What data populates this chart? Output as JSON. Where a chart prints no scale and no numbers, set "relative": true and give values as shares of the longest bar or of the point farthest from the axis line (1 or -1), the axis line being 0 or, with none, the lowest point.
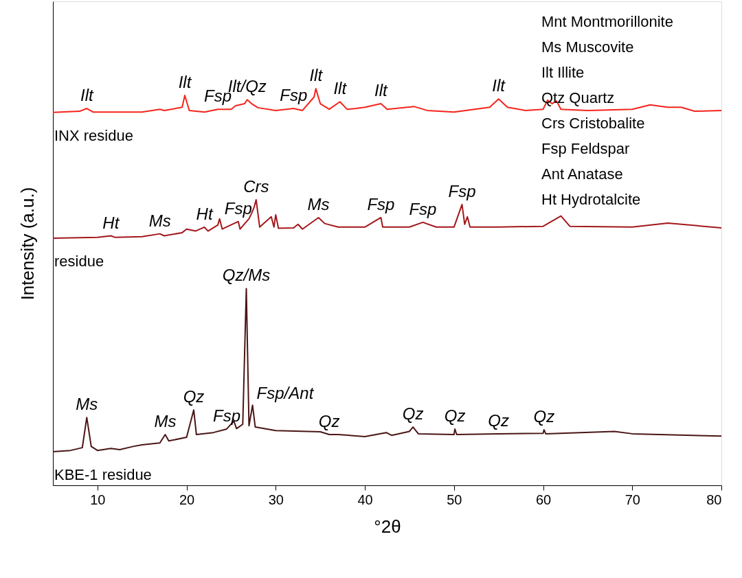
{
  "chart_data": {
    "type": "line",
    "relative": true,
    "xlabel": "°2θ",
    "ylabel": "Intensity (a.u.)",
    "xlim": [
      5,
      80
    ],
    "xticks": [
      10,
      20,
      30,
      40,
      50,
      60,
      70,
      80
    ],
    "grid": false,
    "legend": false,
    "series": [
      {
        "name": "INX residue",
        "color": "#f5231b",
        "x": [
          5,
          8,
          8.8,
          9.5,
          15,
          17,
          17.5,
          19.5,
          19.8,
          20.3,
          22,
          23.5,
          25,
          25.5,
          26.5,
          26.8,
          27.3,
          28,
          30,
          32,
          33,
          34.3,
          34.5,
          35,
          36,
          37.2,
          38,
          39,
          40,
          41.8,
          42.5,
          45.5,
          47,
          50,
          54,
          55,
          56,
          58,
          60,
          60.5,
          61,
          61.5,
          62,
          65,
          70,
          72,
          74,
          75.5,
          77,
          80
        ],
        "values": [
          0.94,
          0.943,
          0.95,
          0.941,
          0.941,
          0.948,
          0.945,
          0.953,
          0.983,
          0.945,
          0.941,
          0.948,
          0.948,
          0.957,
          0.962,
          0.972,
          0.962,
          0.952,
          0.945,
          0.95,
          0.945,
          0.979,
          1.0,
          0.962,
          0.948,
          0.967,
          0.948,
          0.95,
          0.953,
          0.962,
          0.948,
          0.955,
          0.945,
          0.941,
          0.953,
          0.974,
          0.953,
          0.945,
          0.948,
          0.971,
          0.962,
          0.969,
          0.948,
          0.945,
          0.948,
          0.959,
          0.953,
          0.953,
          0.943,
          0.945
        ]
      },
      {
        "name": "residue",
        "color": "#a3161a",
        "x": [
          5,
          10,
          11.5,
          12,
          15,
          17,
          17.5,
          19.5,
          20,
          21,
          22,
          22.4,
          23.5,
          23.7,
          24,
          25.8,
          26,
          27,
          27.3,
          27.6,
          27.8,
          28.2,
          29.5,
          29.8,
          30,
          30.3,
          32,
          32.5,
          33,
          34.8,
          35.5,
          37,
          40,
          41.8,
          42,
          45,
          46.5,
          48,
          50,
          50.9,
          51.2,
          51.5,
          51.8,
          55,
          60,
          62,
          63,
          70,
          74,
          80
        ],
        "values": [
          0.623,
          0.625,
          0.629,
          0.625,
          0.627,
          0.634,
          0.629,
          0.637,
          0.646,
          0.641,
          0.651,
          0.641,
          0.656,
          0.672,
          0.646,
          0.665,
          0.646,
          0.672,
          0.686,
          0.703,
          0.72,
          0.651,
          0.677,
          0.651,
          0.682,
          0.648,
          0.649,
          0.658,
          0.646,
          0.675,
          0.66,
          0.651,
          0.651,
          0.675,
          0.651,
          0.651,
          0.663,
          0.651,
          0.651,
          0.708,
          0.658,
          0.677,
          0.651,
          0.651,
          0.653,
          0.679,
          0.653,
          0.651,
          0.661,
          0.649
        ]
      },
      {
        "name": "KBE-1 residue",
        "color": "#4a1515",
        "x": [
          5,
          7,
          8.3,
          8.8,
          9.3,
          10,
          11.5,
          12.5,
          14,
          15,
          17,
          17.6,
          18,
          20,
          20.8,
          21.1,
          23,
          24.5,
          25.3,
          25.6,
          26.3,
          26.7,
          27,
          27.4,
          27.7,
          30,
          35,
          36,
          37,
          40,
          42.4,
          43,
          45,
          45.4,
          46,
          50,
          50.1,
          50.3,
          55,
          60,
          60.1,
          60.3,
          68,
          70,
          80
        ],
        "values": [
          0.085,
          0.088,
          0.095,
          0.171,
          0.098,
          0.088,
          0.093,
          0.09,
          0.098,
          0.102,
          0.107,
          0.128,
          0.112,
          0.121,
          0.19,
          0.128,
          0.133,
          0.142,
          0.162,
          0.143,
          0.154,
          0.496,
          0.15,
          0.202,
          0.147,
          0.138,
          0.135,
          0.128,
          0.128,
          0.123,
          0.133,
          0.126,
          0.136,
          0.147,
          0.13,
          0.128,
          0.142,
          0.128,
          0.13,
          0.131,
          0.14,
          0.13,
          0.136,
          0.13,
          0.124
        ]
      }
    ],
    "annotations": [
      {
        "text": "Ilt",
        "x": 8.8,
        "y": 0.95
      },
      {
        "text": "Ilt",
        "x": 19.8,
        "y": 0.983
      },
      {
        "text": "Fsp",
        "x": 23.5,
        "y": 0.948
      },
      {
        "text": "Ilt/Qz",
        "x": 26.8,
        "y": 0.972
      },
      {
        "text": "Fsp",
        "x": 32,
        "y": 0.95
      },
      {
        "text": "Ilt",
        "x": 34.5,
        "y": 1.0
      },
      {
        "text": "Ilt",
        "x": 37.2,
        "y": 0.967
      },
      {
        "text": "Ilt",
        "x": 41.8,
        "y": 0.962
      },
      {
        "text": "Ilt",
        "x": 55,
        "y": 0.974
      },
      {
        "text": "Ht",
        "x": 11.5,
        "y": 0.629
      },
      {
        "text": "Ms",
        "x": 17,
        "y": 0.634
      },
      {
        "text": "Ht",
        "x": 22,
        "y": 0.651
      },
      {
        "text": "Fsp",
        "x": 25.8,
        "y": 0.665
      },
      {
        "text": "Crs",
        "x": 27.8,
        "y": 0.72
      },
      {
        "text": "Ms",
        "x": 34.8,
        "y": 0.675
      },
      {
        "text": "Fsp",
        "x": 41.8,
        "y": 0.675
      },
      {
        "text": "Fsp",
        "x": 46.5,
        "y": 0.663
      },
      {
        "text": "Fsp",
        "x": 50.9,
        "y": 0.708
      },
      {
        "text": "Ms",
        "x": 8.8,
        "y": 0.171
      },
      {
        "text": "Ms",
        "x": 17.6,
        "y": 0.128
      },
      {
        "text": "Qz",
        "x": 20.8,
        "y": 0.19
      },
      {
        "text": "Fsp",
        "x": 24.5,
        "y": 0.142
      },
      {
        "text": "Qz/Ms",
        "x": 26.7,
        "y": 0.496
      },
      {
        "text": "Fsp/Ant",
        "x": 27.4,
        "y": 0.202
      },
      {
        "text": "Qz",
        "x": 36,
        "y": 0.128
      },
      {
        "text": "Qz",
        "x": 45.4,
        "y": 0.147
      },
      {
        "text": "Qz",
        "x": 50.1,
        "y": 0.142
      },
      {
        "text": "Qz",
        "x": 55,
        "y": 0.13
      },
      {
        "text": "Qz",
        "x": 60.1,
        "y": 0.14
      },
      "Mnt Montmorillonite",
      "Ms Muscovite",
      "Ilt Illite",
      "Qtz Quartz",
      "Crs Cristobalite",
      "Fsp Feldspar",
      "Ant Anatase",
      "Ht Hydrotalcite"
    ]
  }
}
